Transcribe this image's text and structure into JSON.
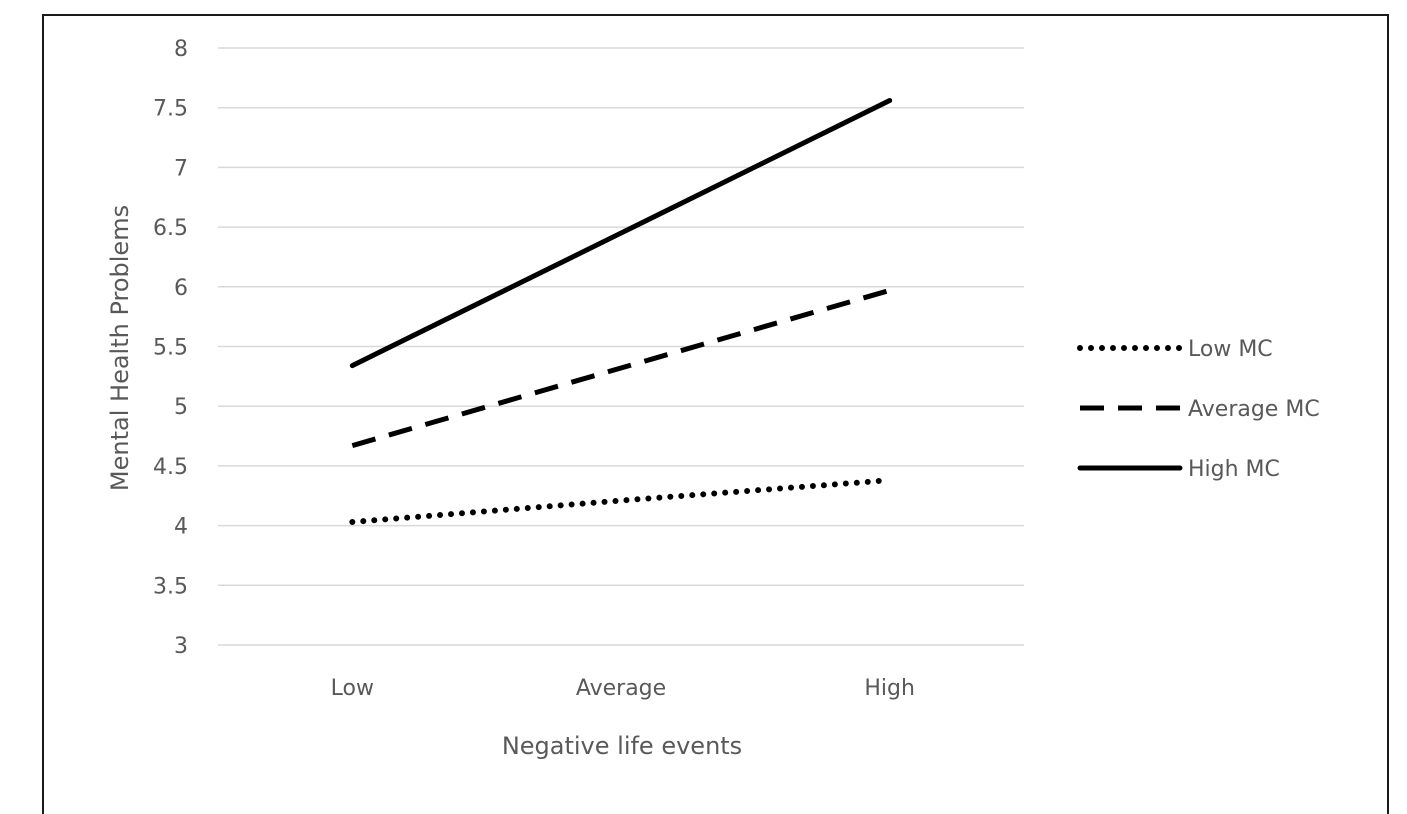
{
  "chart_data": {
    "type": "line",
    "title": "",
    "xlabel": "Negative life events",
    "ylabel": "Mental Health Problems",
    "categories": [
      "Low",
      "Average",
      "High"
    ],
    "ylim": [
      3,
      8
    ],
    "yticks": [
      "3",
      "3.5",
      "4",
      "4.5",
      "5",
      "5.5",
      "6",
      "6.5",
      "7",
      "7.5",
      "8"
    ],
    "grid": true,
    "legend_position": "right",
    "series": [
      {
        "name": "Low MC",
        "values": [
          4.03,
          4.21,
          4.38
        ],
        "style": "dotted",
        "color": "#000000"
      },
      {
        "name": "Average MC",
        "values": [
          4.67,
          5.32,
          5.97
        ],
        "style": "dashed",
        "color": "#000000"
      },
      {
        "name": "High MC",
        "values": [
          5.34,
          6.45,
          7.56
        ],
        "style": "solid",
        "color": "#000000"
      }
    ]
  }
}
